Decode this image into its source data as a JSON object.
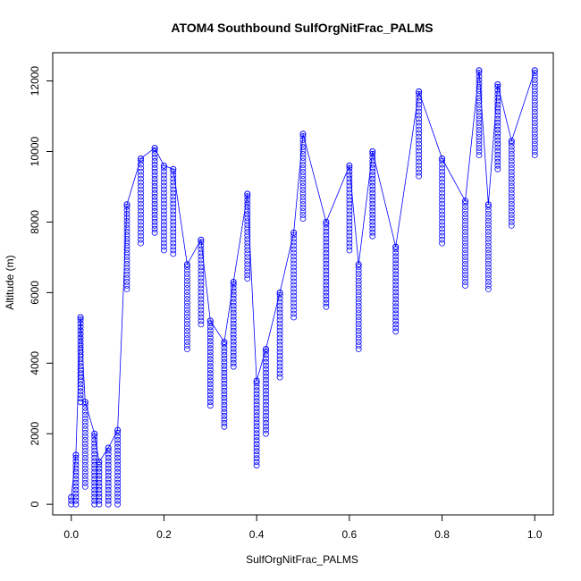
{
  "chart_data": {
    "type": "scatter",
    "title": "ATOM4 Southbound SulfOrgNitFrac_PALMS",
    "xlabel": "SulfOrgNitFrac_PALMS",
    "ylabel": "Altitude (m)",
    "xlim": [
      -0.04,
      1.04
    ],
    "ylim": [
      -300,
      12800
    ],
    "xticks": [
      "0.0",
      "0.2",
      "0.4",
      "0.6",
      "0.8",
      "1.0"
    ],
    "yticks": [
      "0",
      "2000",
      "4000",
      "6000",
      "8000",
      "10000",
      "12000"
    ],
    "grid": false,
    "legend": "none",
    "color": "#0000ff",
    "series": [
      {
        "x": [
          0.0,
          0.01,
          0.02,
          0.03,
          0.05,
          0.06,
          0.08,
          0.1,
          0.12,
          0.15,
          0.18,
          0.2,
          0.22,
          0.25,
          0.28,
          0.3,
          0.33,
          0.35,
          0.38,
          0.4,
          0.42,
          0.45,
          0.48,
          0.5,
          0.55,
          0.6,
          0.62,
          0.65,
          0.7,
          0.75,
          0.8,
          0.85,
          0.88,
          0.9,
          0.92,
          0.95,
          1.0
        ],
        "y": [
          200,
          1400,
          5300,
          2900,
          2000,
          1200,
          1600,
          2100,
          8500,
          9800,
          10100,
          9600,
          9500,
          6800,
          7500,
          5200,
          4600,
          6300,
          8800,
          3500,
          4400,
          6000,
          7700,
          10500,
          8000,
          9600,
          6800,
          10000,
          7300,
          11700,
          9800,
          8600,
          12300,
          8500,
          11900,
          10300,
          12300
        ]
      }
    ]
  }
}
